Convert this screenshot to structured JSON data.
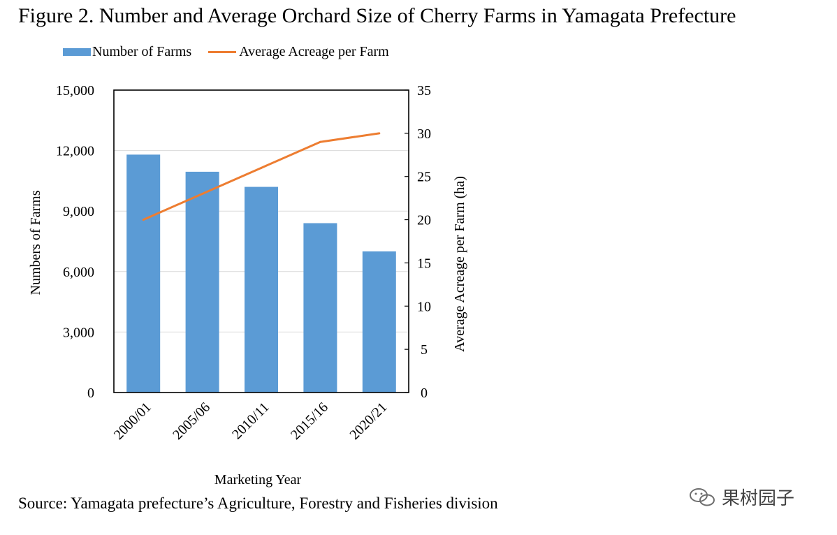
{
  "title": "Figure 2. Number and Average Orchard Size of Cherry Farms in Yamagata Prefecture",
  "source": "Source: Yamagata prefecture’s Agriculture, Forestry and Fisheries division",
  "watermark": "果树园子",
  "colors": {
    "bar": "#5b9bd5",
    "line": "#ed7d31",
    "grid": "#d9d9d9"
  },
  "chart_data": {
    "type": "bar",
    "categories": [
      "2000/01",
      "2005/06",
      "2010/11",
      "2015/16",
      "2020/21"
    ],
    "series": [
      {
        "name": "Number of Farms",
        "type": "bar",
        "axis": "left",
        "values": [
          11800,
          10950,
          10200,
          8400,
          7000
        ]
      },
      {
        "name": "Average Acreage per Farm",
        "type": "line",
        "axis": "right",
        "values": [
          20,
          23,
          26,
          29,
          30
        ]
      }
    ],
    "xlabel": "Marketing Year",
    "ylabel": "Numbers of Farms",
    "y2label": "Average Acreage per Farm (ha)",
    "ylim": [
      0,
      15000
    ],
    "y2lim": [
      0,
      35
    ],
    "yticks": [
      "0",
      "3,000",
      "6,000",
      "9,000",
      "12,000",
      "15,000"
    ],
    "y2ticks": [
      "0",
      "5",
      "10",
      "15",
      "20",
      "25",
      "30",
      "35"
    ],
    "grid": true,
    "legend_position": "top-left"
  }
}
